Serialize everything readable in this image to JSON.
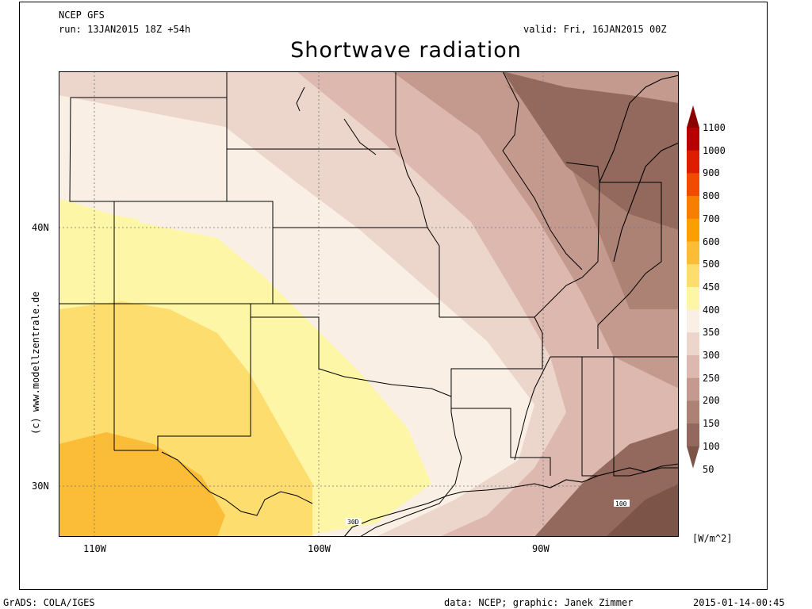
{
  "header": {
    "model": "NCEP GFS",
    "run": "run: 13JAN2015 18Z +54h",
    "valid": "valid: Fri, 16JAN2015 00Z",
    "title": "Shortwave radiation"
  },
  "credit": "(c) www.modellzentrale.de",
  "axes": {
    "lat_labels": [
      "40N",
      "30N"
    ],
    "lon_labels": [
      "110W",
      "100W",
      "90W"
    ]
  },
  "colorbar": {
    "unit": "[W/m^2]",
    "levels": [
      "1100",
      "1000",
      "900",
      "800",
      "700",
      "600",
      "500",
      "450",
      "400",
      "350",
      "300",
      "250",
      "200",
      "150",
      "100",
      "50"
    ],
    "colors": [
      "#8b0000",
      "#b80000",
      "#dd1c00",
      "#f24a00",
      "#f67f00",
      "#f9a000",
      "#fbbd38",
      "#fcdd6e",
      "#fdf6a6",
      "#faefe4",
      "#ecd5cb",
      "#ddb8ae",
      "#c49a8e",
      "#ab8274",
      "#94695d",
      "#7d5448"
    ]
  },
  "contour_labels": [
    "30D",
    "100"
  ],
  "footer": {
    "software": "GrADS: COLA/IGES",
    "source": "data: NCEP; graphic: Janek Zimmer",
    "timestamp": "2015-01-14-00:45"
  }
}
